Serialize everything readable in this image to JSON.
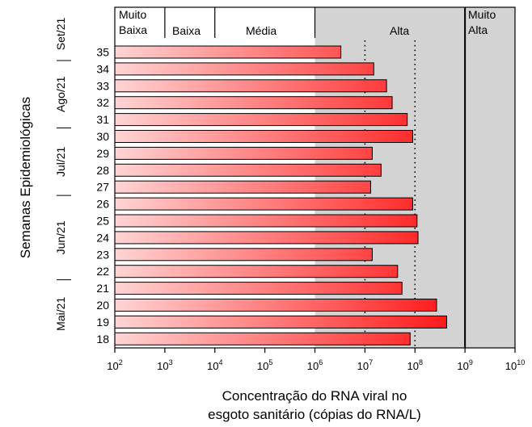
{
  "chart_data": {
    "type": "bar",
    "orientation": "horizontal",
    "x_scale": "log",
    "xlim": [
      100,
      10000000000
    ],
    "xlabel": "Concentração do RNA viral no\nesgoto sanitário (cópias do RNA/L)",
    "ylabel": "Semanas Epidemiológicas",
    "x_ticks": [
      {
        "base": "10",
        "exp": "2"
      },
      {
        "base": "10",
        "exp": "3"
      },
      {
        "base": "10",
        "exp": "4"
      },
      {
        "base": "10",
        "exp": "5"
      },
      {
        "base": "10",
        "exp": "6"
      },
      {
        "base": "10",
        "exp": "7"
      },
      {
        "base": "10",
        "exp": "8"
      },
      {
        "base": "10",
        "exp": "9"
      },
      {
        "base": "10",
        "exp": "10"
      }
    ],
    "categories": [
      "35",
      "34",
      "33",
      "32",
      "31",
      "30",
      "29",
      "28",
      "27",
      "26",
      "25",
      "24",
      "23",
      "22",
      "21",
      "20",
      "19",
      "18"
    ],
    "values": [
      3300000,
      15000000,
      27000000,
      35000000,
      70000000,
      90000000,
      14000000,
      21000000,
      13000000,
      90000000,
      110000000,
      115000000,
      14000000,
      45000000,
      55000000,
      270000000,
      430000000,
      80000000
    ],
    "bar_gradient": [
      "#ffd4d4",
      "#ff1a1a"
    ],
    "bar_stroke": "#000000",
    "category_bands": [
      {
        "label": "Muito\nBaixa",
        "range": [
          100,
          1000
        ]
      },
      {
        "label": "Baixa",
        "range": [
          1000,
          10000
        ]
      },
      {
        "label": "Média",
        "range": [
          10000,
          1000000
        ]
      },
      {
        "label": "Alta",
        "range": [
          1000000,
          1000000000
        ]
      },
      {
        "label": "Muito\nAlta",
        "range": [
          1000000000,
          10000000000
        ]
      }
    ],
    "shaded_region": {
      "range": [
        1000000,
        10000000000
      ],
      "color": "#d3d3d3"
    },
    "reference_lines": [
      {
        "x": 10000000,
        "style": "dotted"
      },
      {
        "x": 100000000,
        "style": "dotted"
      },
      {
        "x": 1000000000,
        "style": "solid"
      }
    ],
    "month_groups": [
      {
        "label": "Set/21",
        "weeks": [
          "35"
        ]
      },
      {
        "label": "Ago/21",
        "weeks": [
          "34",
          "33",
          "32",
          "31"
        ]
      },
      {
        "label": "Jul/21",
        "weeks": [
          "30",
          "29",
          "28",
          "27"
        ]
      },
      {
        "label": "Jun/21",
        "weeks": [
          "26",
          "25",
          "24",
          "23",
          "22"
        ]
      },
      {
        "label": "Mai/21",
        "weeks": [
          "21",
          "20",
          "19",
          "18"
        ]
      }
    ],
    "grid": false,
    "legend": "none"
  }
}
